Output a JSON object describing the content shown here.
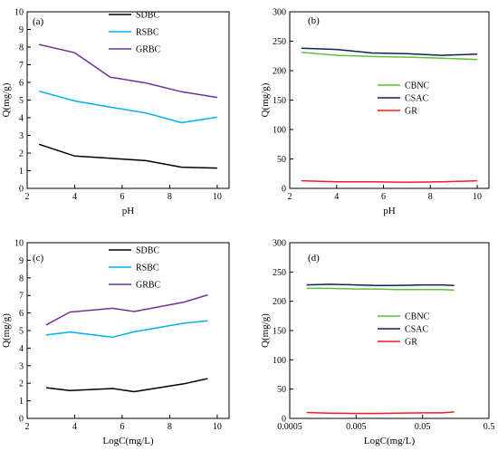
{
  "chart_data": [
    {
      "panel": "(a)",
      "type": "line",
      "xlabel": "pH",
      "ylabel": "Q(mg/g)",
      "xlim": [
        2,
        10.5
      ],
      "ylim": [
        0,
        10
      ],
      "xticks": [
        "2",
        "4",
        "6",
        "8",
        "10"
      ],
      "yticks": [
        "0",
        "1",
        "2",
        "3",
        "4",
        "5",
        "6",
        "7",
        "8",
        "9",
        "10"
      ],
      "legend_position": "top-right",
      "series": [
        {
          "name": "SDBC",
          "color": "#000000",
          "x": [
            2.5,
            4,
            5.5,
            7,
            8.5,
            10
          ],
          "y": [
            2.5,
            1.83,
            1.7,
            1.57,
            1.2,
            1.15
          ]
        },
        {
          "name": "RSBC",
          "color": "#00b0f0",
          "x": [
            2.5,
            4,
            5.5,
            7,
            8.5,
            10
          ],
          "y": [
            5.5,
            4.95,
            4.6,
            4.27,
            3.72,
            4.03
          ]
        },
        {
          "name": "GRBC",
          "color": "#7030a0",
          "x": [
            2.5,
            4,
            5.5,
            7,
            8.5,
            10
          ],
          "y": [
            8.15,
            7.68,
            6.3,
            5.97,
            5.47,
            5.15
          ]
        }
      ]
    },
    {
      "panel": "(b)",
      "type": "line",
      "xlabel": "pH",
      "ylabel": "Q(mg/g)",
      "xlim": [
        2,
        10.5
      ],
      "ylim": [
        0,
        300
      ],
      "xticks": [
        "2",
        "4",
        "6",
        "8",
        "10"
      ],
      "yticks": [
        "0",
        "50",
        "100",
        "150",
        "200",
        "250",
        "300"
      ],
      "legend_position": "center-right",
      "series": [
        {
          "name": "CBNC",
          "color": "#5ec234",
          "x": [
            2.5,
            4,
            5.5,
            7,
            8.5,
            10
          ],
          "y": [
            231,
            226,
            224,
            223,
            221,
            219
          ]
        },
        {
          "name": "CSAC",
          "color": "#0f1f5a",
          "x": [
            2.5,
            4,
            5.5,
            7,
            8.5,
            10
          ],
          "y": [
            238,
            236,
            230,
            229,
            226,
            228
          ]
        },
        {
          "name": "GR",
          "color": "#ff1a1a",
          "x": [
            2.5,
            4,
            5.5,
            7,
            8.5,
            10
          ],
          "y": [
            13,
            11,
            11,
            10.5,
            11,
            13
          ]
        }
      ]
    },
    {
      "panel": "(c)",
      "type": "line",
      "xlabel": "LogC(mg/L)",
      "ylabel": "Q(mg/g)",
      "xlim": [
        2,
        10.5
      ],
      "ylim": [
        0,
        10
      ],
      "xticks": [
        "2",
        "4",
        "6",
        "8",
        "10"
      ],
      "yticks": [
        "0",
        "1",
        "2",
        "3",
        "4",
        "5",
        "6",
        "7",
        "8",
        "9",
        "10"
      ],
      "legend_position": "top-right",
      "series": [
        {
          "name": "SDBC",
          "color": "#000000",
          "x": [
            2.8,
            3.8,
            5.6,
            6.5,
            8.6,
            9.6
          ],
          "y": [
            1.75,
            1.58,
            1.7,
            1.52,
            1.97,
            2.27
          ]
        },
        {
          "name": "RSBC",
          "color": "#00b0f0",
          "x": [
            2.8,
            3.8,
            5.6,
            6.5,
            8.6,
            9.6
          ],
          "y": [
            4.75,
            4.92,
            4.62,
            4.93,
            5.42,
            5.55
          ]
        },
        {
          "name": "GRBC",
          "color": "#7030a0",
          "x": [
            2.8,
            3.8,
            5.6,
            6.5,
            8.6,
            9.6
          ],
          "y": [
            5.32,
            6.05,
            6.27,
            6.08,
            6.62,
            7.03
          ]
        }
      ]
    },
    {
      "panel": "(d)",
      "type": "line",
      "xlabel": "LogC(mg/L)",
      "ylabel": "Q(mg/g)",
      "xscale": "log",
      "xlim": [
        0.0005,
        0.5
      ],
      "ylim": [
        0,
        300
      ],
      "xticks": [
        "0.0005",
        "0.005",
        "0.05",
        "0.5"
      ],
      "yticks": [
        "0",
        "50",
        "100",
        "150",
        "200",
        "250",
        "300"
      ],
      "legend_position": "center-left",
      "series": [
        {
          "name": "CBNC",
          "color": "#5ec234",
          "x": [
            0.0009,
            0.002,
            0.005,
            0.01,
            0.02,
            0.05,
            0.1,
            0.15
          ],
          "y": [
            222,
            222,
            221,
            221,
            220,
            220,
            220,
            219
          ]
        },
        {
          "name": "CSAC",
          "color": "#0f1f5a",
          "x": [
            0.0009,
            0.002,
            0.005,
            0.01,
            0.02,
            0.05,
            0.1,
            0.15
          ],
          "y": [
            228,
            229,
            228,
            227,
            227,
            228,
            228,
            227
          ]
        },
        {
          "name": "GR",
          "color": "#ff1a1a",
          "x": [
            0.0009,
            0.002,
            0.005,
            0.01,
            0.02,
            0.05,
            0.1,
            0.15
          ],
          "y": [
            10,
            9,
            8.5,
            8.5,
            9,
            9.5,
            9.5,
            11
          ]
        }
      ]
    }
  ]
}
